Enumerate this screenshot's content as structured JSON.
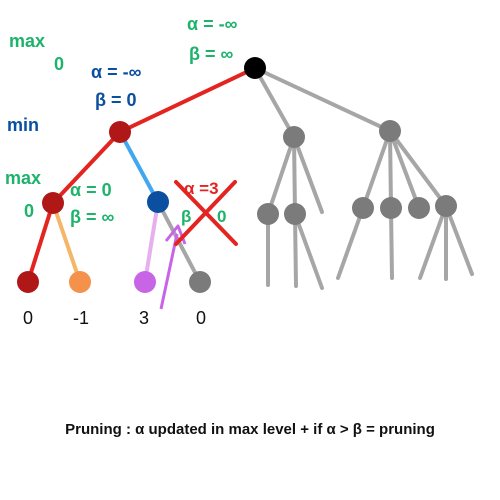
{
  "root": {
    "alpha": "α = -∞",
    "beta": "β = ∞"
  },
  "level_labels": {
    "max_top": "max",
    "root_value": "0",
    "min": "min",
    "max_left": "max",
    "max_left_value": "0"
  },
  "min_node": {
    "alpha": "α = -∞",
    "beta": "β = 0"
  },
  "max_node_left": {
    "alpha": "α = 0",
    "beta": "β = ∞"
  },
  "pruned_node": {
    "alpha": "α =3",
    "beta": "β",
    "beta_value": "0"
  },
  "leaf_values": [
    "0",
    "-1",
    "3",
    "0"
  ],
  "caption": "Pruning : α updated in max level + if α > β = pruning",
  "colors": {
    "green": "#1db36b",
    "blue": "#0a4fa0",
    "red": "#e32420",
    "gray": "#a6a6a6",
    "dark_red": "#b01818",
    "orange": "#f4914a",
    "purple": "#c864e6",
    "light_blue": "#41a8f0"
  },
  "icons": {
    "prune_mark": "red-x-cross"
  }
}
